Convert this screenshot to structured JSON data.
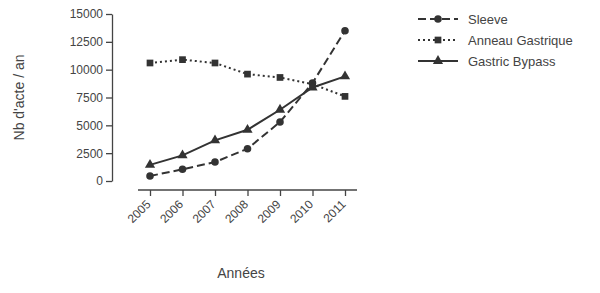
{
  "chart_data": {
    "type": "line",
    "x_label": "Années",
    "y_label": "Nb d'acte / an",
    "categories": [
      "2005",
      "2006",
      "2007",
      "2008",
      "2009",
      "2010",
      "2011"
    ],
    "series": [
      {
        "name": "Sleeve",
        "color": "#333333",
        "marker": "circle",
        "line_style": "dashed",
        "values": [
          450,
          1050,
          1700,
          2900,
          5300,
          8800,
          13500
        ]
      },
      {
        "name": "Anneau Gastrique",
        "color": "#333333",
        "marker": "square",
        "line_style": "dotted",
        "values": [
          10600,
          10900,
          10600,
          9600,
          9300,
          8700,
          7600
        ]
      },
      {
        "name": "Gastric Bypass",
        "color": "#333333",
        "marker": "triangle",
        "line_style": "solid",
        "values": [
          1450,
          2300,
          3650,
          4600,
          6400,
          8400,
          9400
        ]
      }
    ],
    "ylim": [
      0,
      15000
    ],
    "yticks": [
      0,
      2500,
      5000,
      7500,
      10000,
      12500,
      15000
    ],
    "grid": false,
    "legend": "right"
  }
}
